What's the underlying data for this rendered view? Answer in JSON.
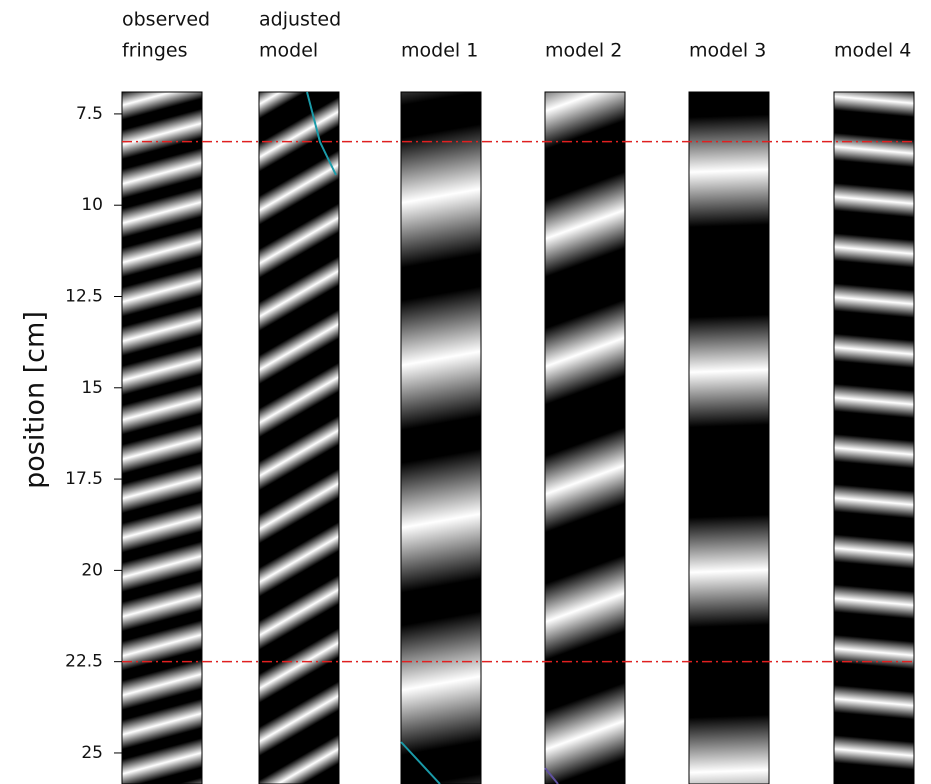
{
  "chart_data": {
    "type": "image_panels",
    "ylabel": "position [cm]",
    "ylim": [
      6.9,
      25.85
    ],
    "yticks": [
      7.5,
      10,
      12.5,
      15,
      17.5,
      20,
      22.5,
      25
    ],
    "hlines": [
      8.26,
      22.5
    ],
    "hline_color": "#e02020",
    "panels": [
      {
        "title": [
          "observed",
          "fringes"
        ]
      },
      {
        "title": [
          "adjusted",
          "model"
        ]
      },
      {
        "title": [
          "model 1"
        ]
      },
      {
        "title": [
          "model 2"
        ]
      },
      {
        "title": [
          "model 3"
        ]
      },
      {
        "title": [
          "model 4"
        ]
      }
    ]
  }
}
